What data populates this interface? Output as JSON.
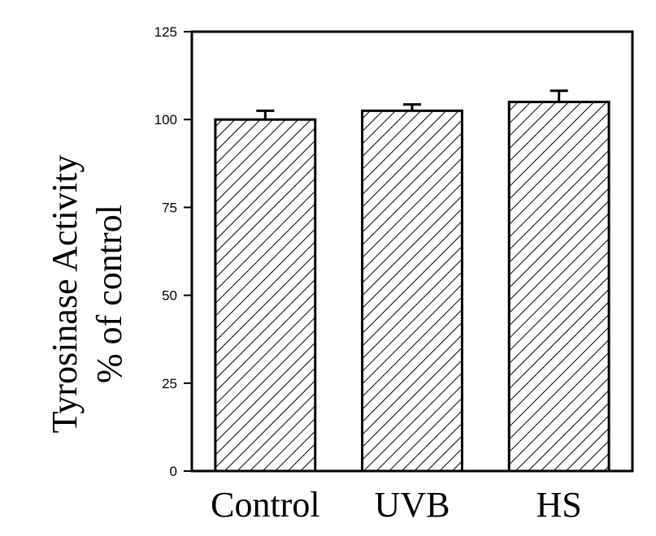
{
  "chart_data": {
    "type": "bar",
    "title": "",
    "xlabel": "",
    "ylabel": [
      "Tyrosinase Activity",
      "% of control"
    ],
    "categories": [
      "Control",
      "UVB",
      "HS"
    ],
    "values": [
      100,
      102.5,
      105
    ],
    "error_bars": [
      2.5,
      1.8,
      3.2
    ],
    "ylim": [
      0,
      125
    ],
    "yticks": [
      0,
      25,
      50,
      75,
      100,
      125
    ],
    "grid": false,
    "legend": "none",
    "bar_fill": "diagonal-hatch",
    "colors": {
      "bar_edge": "#000000",
      "hatch": "#000000",
      "background": "#ffffff"
    }
  }
}
